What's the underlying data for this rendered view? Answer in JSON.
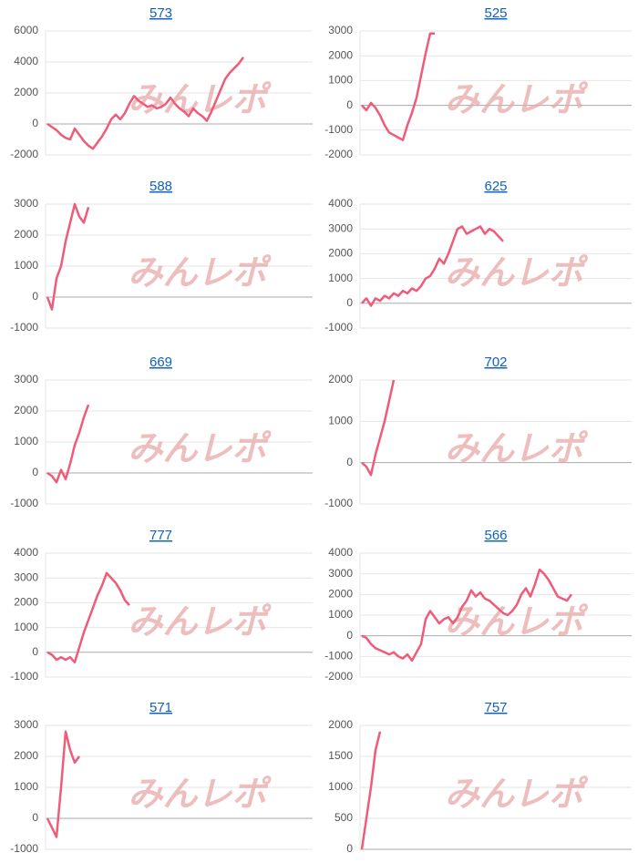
{
  "chart_data": [
    {
      "type": "line",
      "title": "573",
      "watermark": "みんレポ",
      "color": "#ef5b78",
      "grid": true,
      "ylim": [
        -2000,
        6000
      ],
      "yticks": [
        -2000,
        0,
        2000,
        4000,
        6000
      ],
      "values": [
        0,
        -200,
        -400,
        -700,
        -900,
        -1000,
        -300,
        -700,
        -1100,
        -1400,
        -1600,
        -1200,
        -800,
        -300,
        300,
        600,
        300,
        700,
        1300,
        1800,
        1500,
        1300,
        1100,
        1200,
        1000,
        1100,
        1300,
        1700,
        1300,
        1000,
        800,
        500,
        1000,
        700,
        500,
        200,
        800,
        1500,
        2200,
        2900,
        3300,
        3600,
        3900,
        4300
      ]
    },
    {
      "type": "line",
      "title": "525",
      "watermark": "みんレポ",
      "color": "#ef5b78",
      "grid": true,
      "ylim": [
        -2000,
        3000
      ],
      "yticks": [
        -2000,
        -1000,
        0,
        1000,
        2000,
        3000
      ],
      "values": [
        0,
        -200,
        100,
        -100,
        -400,
        -800,
        -1100,
        -1200,
        -1300,
        -1400,
        -800,
        -300,
        300,
        1200,
        2100,
        2900,
        2900
      ]
    },
    {
      "type": "line",
      "title": "588",
      "watermark": "みんレポ",
      "color": "#ef5b78",
      "grid": true,
      "ylim": [
        -1000,
        3000
      ],
      "yticks": [
        -1000,
        0,
        1000,
        2000,
        3000
      ],
      "values": [
        0,
        -400,
        600,
        1000,
        1800,
        2400,
        3000,
        2600,
        2400,
        2900
      ]
    },
    {
      "type": "line",
      "title": "625",
      "watermark": "みんレポ",
      "color": "#ef5b78",
      "grid": true,
      "ylim": [
        -1000,
        4000
      ],
      "yticks": [
        -1000,
        0,
        1000,
        2000,
        3000,
        4000
      ],
      "values": [
        0,
        200,
        -100,
        200,
        100,
        300,
        200,
        400,
        300,
        500,
        400,
        600,
        500,
        700,
        1000,
        1100,
        1400,
        1800,
        1600,
        2000,
        2500,
        3000,
        3100,
        2800,
        2900,
        3000,
        3100,
        2800,
        3000,
        2900,
        2700,
        2500
      ]
    },
    {
      "type": "line",
      "title": "669",
      "watermark": "みんレポ",
      "color": "#ef5b78",
      "grid": true,
      "ylim": [
        -1000,
        3000
      ],
      "yticks": [
        -1000,
        0,
        1000,
        2000,
        3000
      ],
      "values": [
        0,
        -100,
        -300,
        100,
        -200,
        300,
        900,
        1300,
        1800,
        2200
      ]
    },
    {
      "type": "line",
      "title": "702",
      "watermark": "みんレポ",
      "color": "#ef5b78",
      "grid": true,
      "ylim": [
        -1000,
        2000
      ],
      "yticks": [
        -1000,
        0,
        1000,
        2000
      ],
      "values": [
        0,
        -100,
        -300,
        200,
        600,
        1000,
        1500,
        2000
      ]
    },
    {
      "type": "line",
      "title": "777",
      "watermark": "みんレポ",
      "color": "#ef5b78",
      "grid": true,
      "ylim": [
        -1000,
        4000
      ],
      "yticks": [
        -1000,
        0,
        1000,
        2000,
        3000,
        4000
      ],
      "values": [
        0,
        -100,
        -300,
        -200,
        -300,
        -200,
        -400,
        200,
        800,
        1300,
        1800,
        2300,
        2700,
        3200,
        3000,
        2800,
        2500,
        2100,
        1900
      ]
    },
    {
      "type": "line",
      "title": "566",
      "watermark": "みんレポ",
      "color": "#ef5b78",
      "grid": true,
      "ylim": [
        -2000,
        4000
      ],
      "yticks": [
        -2000,
        -1000,
        0,
        1000,
        2000,
        3000,
        4000
      ],
      "values": [
        0,
        -100,
        -400,
        -600,
        -700,
        -800,
        -900,
        -800,
        -1000,
        -1100,
        -900,
        -1200,
        -800,
        -400,
        800,
        1200,
        900,
        600,
        800,
        900,
        600,
        900,
        1400,
        1700,
        2200,
        1900,
        2100,
        1800,
        1700,
        1500,
        1300,
        1100,
        1000,
        1200,
        1500,
        2000,
        2300,
        1900,
        2500,
        3200,
        3000,
        2700,
        2300,
        1900,
        1800,
        1700,
        2000
      ]
    },
    {
      "type": "line",
      "title": "571",
      "watermark": "みんレポ",
      "color": "#ef5b78",
      "grid": true,
      "ylim": [
        -1000,
        3000
      ],
      "yticks": [
        -1000,
        0,
        1000,
        2000,
        3000
      ],
      "values": [
        0,
        -300,
        -600,
        1000,
        2800,
        2200,
        1800,
        2000
      ]
    },
    {
      "type": "line",
      "title": "757",
      "watermark": "みんレポ",
      "color": "#ef5b78",
      "grid": true,
      "ylim": [
        0,
        2000
      ],
      "yticks": [
        0,
        500,
        1000,
        1500,
        2000
      ],
      "values": [
        0,
        500,
        1000,
        1600,
        1900
      ]
    }
  ]
}
